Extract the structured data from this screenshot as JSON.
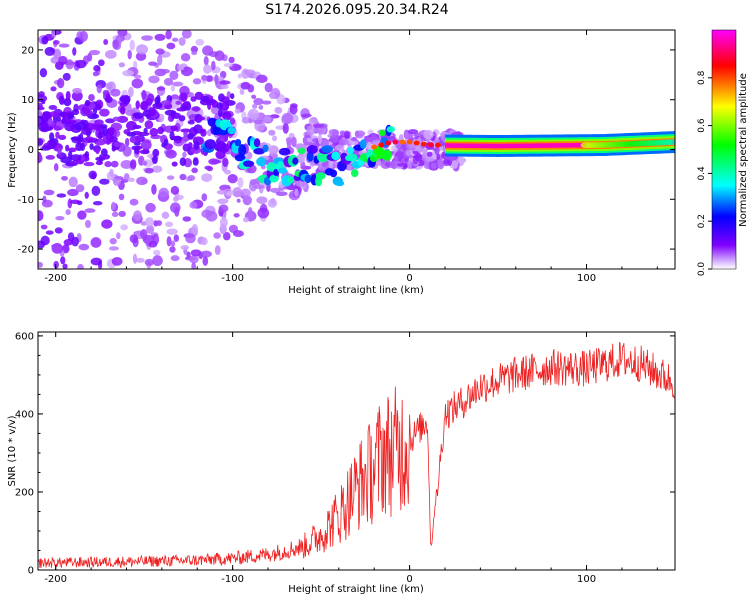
{
  "title": "S174.2026.095.20.34.R24",
  "chart_data": [
    {
      "type": "heatmap",
      "xlabel": "Height of straight line (km)",
      "ylabel": "Frequency (Hz)",
      "xlim": [
        -210,
        150
      ],
      "ylim": [
        -24,
        24
      ],
      "xticks": [
        -200,
        -100,
        0,
        100
      ],
      "yticks": [
        -20,
        -10,
        0,
        10,
        20
      ],
      "colorbar": {
        "label": "Normalized spectral amplitude",
        "range": [
          0.0,
          1.0
        ],
        "ticks": [
          "0.0",
          "0.2",
          "0.4",
          "0.6",
          "0.8"
        ],
        "ticks_values": [
          0.0,
          0.2,
          0.4,
          0.6,
          0.8
        ],
        "colormap": [
          "#ffffff",
          "#d8b8ff",
          "#7f00ff",
          "#0000ff",
          "#00ffff",
          "#00ff00",
          "#ffff00",
          "#ff0000",
          "#ff00ff"
        ]
      },
      "ridge": {
        "description_x": [
          -110,
          -100,
          -90,
          -80,
          -70,
          -60,
          -50,
          -40,
          -30,
          -20,
          -10,
          0,
          10,
          20,
          50,
          80,
          110,
          150
        ],
        "frequency_hz": [
          2.5,
          1.0,
          -1.5,
          -3.0,
          -3.5,
          -2.5,
          -3.0,
          -4.0,
          -1.0,
          0.5,
          1.5,
          1.5,
          1.0,
          0.8,
          0.7,
          0.8,
          0.9,
          1.5
        ],
        "amplitude": [
          0.35,
          0.4,
          0.45,
          0.45,
          0.4,
          0.5,
          0.45,
          0.35,
          0.5,
          0.55,
          0.5,
          0.55,
          0.6,
          0.9,
          1.0,
          0.95,
          0.75,
          0.5
        ]
      }
    },
    {
      "type": "line",
      "xlabel": "Height of straight line (km)",
      "ylabel": "SNR (10 * v/v)",
      "xlim": [
        -210,
        150
      ],
      "ylim": [
        0,
        610
      ],
      "xticks": [
        -200,
        -100,
        0,
        100
      ],
      "yticks": [
        0,
        200,
        400,
        600
      ],
      "color": "#ee2222",
      "series": [
        {
          "name": "SNR",
          "x": [
            -210,
            -180,
            -150,
            -120,
            -100,
            -80,
            -60,
            -50,
            -40,
            -30,
            -20,
            -15,
            -10,
            0,
            5,
            10,
            12,
            20,
            30,
            40,
            60,
            80,
            100,
            120,
            130,
            150
          ],
          "y": [
            18,
            20,
            22,
            25,
            30,
            40,
            60,
            90,
            140,
            210,
            260,
            300,
            300,
            330,
            360,
            380,
            40,
            400,
            430,
            470,
            500,
            520,
            515,
            540,
            530,
            480
          ]
        }
      ]
    }
  ]
}
